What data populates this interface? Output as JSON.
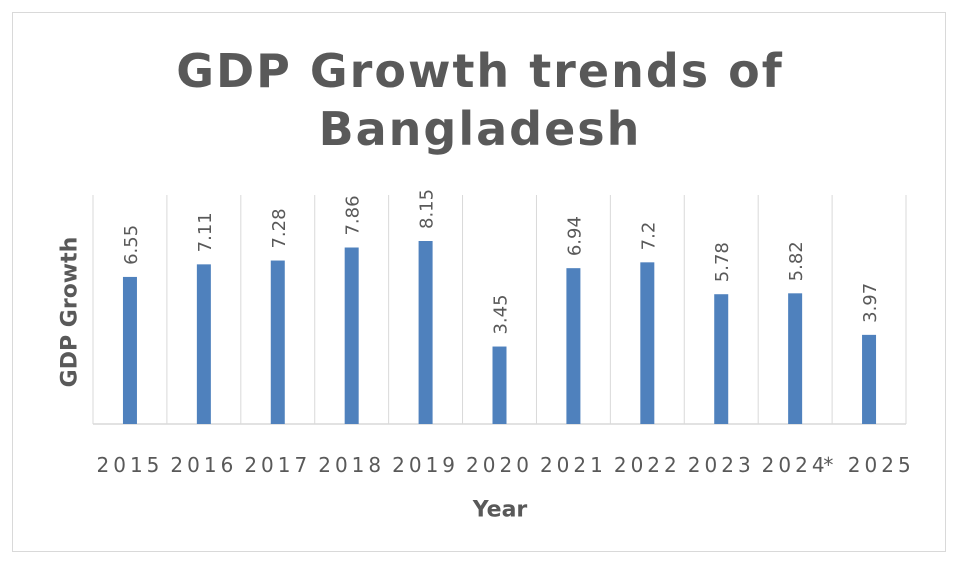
{
  "chart_data": {
    "type": "bar",
    "title_lines": [
      "GDP Growth trends of",
      "Bangladesh"
    ],
    "xlabel": "Year",
    "ylabel": "GDP Growth",
    "categories": [
      "2015",
      "2016",
      "2017",
      "2018",
      "2019",
      "2020",
      "2021",
      "2022",
      "2023",
      "2024",
      "* 2025"
    ],
    "values": [
      6.55,
      7.11,
      7.28,
      7.86,
      8.15,
      3.45,
      6.94,
      7.2,
      5.78,
      5.82,
      3.97
    ],
    "data_labels": [
      "6.55",
      "7.11",
      "7.28",
      "7.86",
      "8.15",
      "3.45",
      "6.94",
      "7.2",
      "5.78",
      "5.82",
      "3.97"
    ],
    "ylim": [
      0,
      9
    ],
    "grid": "vertical",
    "legend": "none",
    "bar_color": "#4f81bd",
    "grid_color": "#d9d9d9"
  }
}
